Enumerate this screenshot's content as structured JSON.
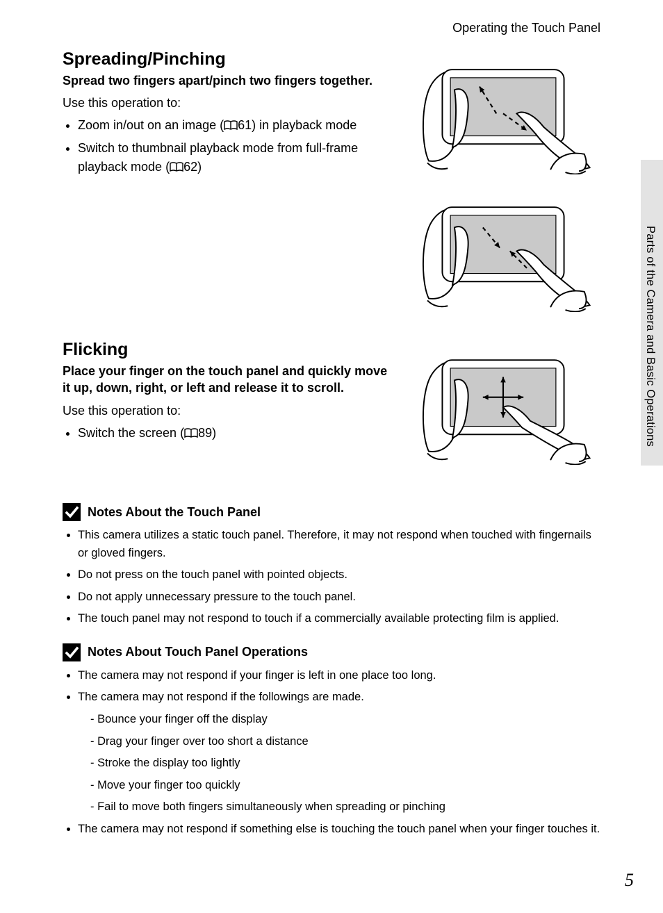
{
  "colors": {
    "text": "#000000",
    "background": "#ffffff",
    "side_tab_bg": "#e3e3e3",
    "screen_fill": "#c9c9c9",
    "stroke": "#000000",
    "arrow_fill": "#000000",
    "badge_bg": "#000000",
    "badge_check": "#ffffff"
  },
  "typography": {
    "body_pt": 18,
    "heading_pt": 25,
    "subheading_pt": 18,
    "note_pt": 16.5,
    "side_caption_pt": 16.5,
    "page_num_pt": 26,
    "font_family": "Myriad Pro / Segoe UI / Helvetica"
  },
  "running_head": "Operating the Touch Panel",
  "side_caption": "Parts of the Camera and Basic Operations",
  "page_number": "5",
  "sections": {
    "spread_pinch": {
      "heading": "Spreading/Pinching",
      "subheading": "Spread two fingers apart/pinch two fingers together.",
      "lead": "Use this operation to:",
      "items": [
        {
          "pre": "Zoom in/out on an image (",
          "ref": "61",
          "post": ") in playback mode"
        },
        {
          "pre": "Switch to thumbnail playback mode from full-frame playback mode (",
          "ref": "62",
          "post": ")"
        }
      ],
      "figures": [
        "spread",
        "pinch"
      ]
    },
    "flicking": {
      "heading": "Flicking",
      "subheading": "Place your finger on the touch panel and quickly move it up, down, right, or left and release it to scroll.",
      "lead": "Use this operation to:",
      "items": [
        {
          "pre": "Switch the screen (",
          "ref": "89",
          "post": ")"
        }
      ],
      "figures": [
        "flick"
      ]
    }
  },
  "notes": [
    {
      "title": "Notes About the Touch Panel",
      "items": [
        "This camera utilizes a static touch panel. Therefore, it may not respond when touched with fingernails or gloved fingers.",
        "Do not press on the touch panel with pointed objects.",
        "Do not apply unnecessary pressure to the touch panel.",
        "The touch panel may not respond to touch if a commercially available protecting film is applied."
      ]
    },
    {
      "title": "Notes About Touch Panel Operations",
      "items": [
        "The camera may not respond if your finger is left in one place too long.",
        "The camera may not respond if the followings are made.",
        "The camera may not respond if something else is touching the touch panel when your finger touches it."
      ],
      "sub_items_for_index": 1,
      "sub_items": [
        "Bounce your finger off the display",
        "Drag your finger over too short a distance",
        "Stroke the display too lightly",
        "Move your finger too quickly",
        "Fail to move both fingers simultaneously when spreading or pinching"
      ]
    }
  ],
  "figure_style": {
    "camera_body_rx": 14,
    "screen_inset": 12,
    "stroke_width": 2,
    "arrow_dash": "6,5"
  }
}
